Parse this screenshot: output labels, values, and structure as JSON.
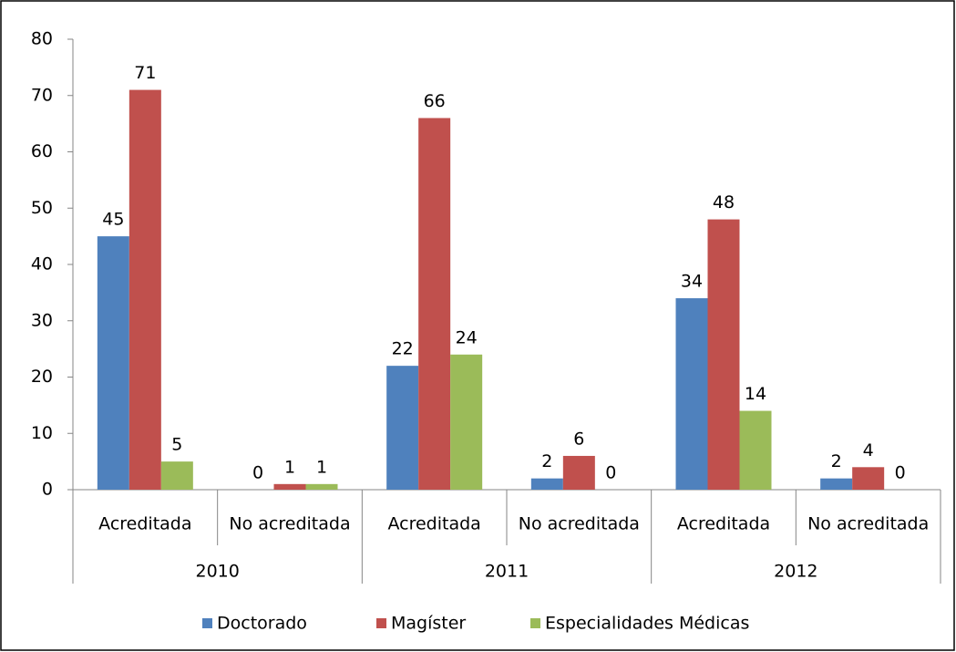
{
  "chart_data": {
    "type": "bar",
    "categories": [
      "Acreditada",
      "No acreditada",
      "Acreditada",
      "No acreditada",
      "Acreditada",
      "No acreditada"
    ],
    "groups": [
      "2010",
      "2011",
      "2012"
    ],
    "series": [
      {
        "name": "Doctorado",
        "color": "#4f81bd",
        "values": [
          45,
          0,
          22,
          2,
          34,
          2
        ]
      },
      {
        "name": "Magíster",
        "color": "#c0504d",
        "values": [
          71,
          1,
          66,
          6,
          48,
          4
        ]
      },
      {
        "name": "Especialidades Médicas",
        "color": "#9bbb59",
        "values": [
          5,
          1,
          24,
          0,
          14,
          0
        ]
      }
    ],
    "ylim": [
      0,
      80
    ],
    "yticks": [
      0,
      10,
      20,
      30,
      40,
      50,
      60,
      70,
      80
    ],
    "grid": false,
    "legend": "bottom"
  }
}
